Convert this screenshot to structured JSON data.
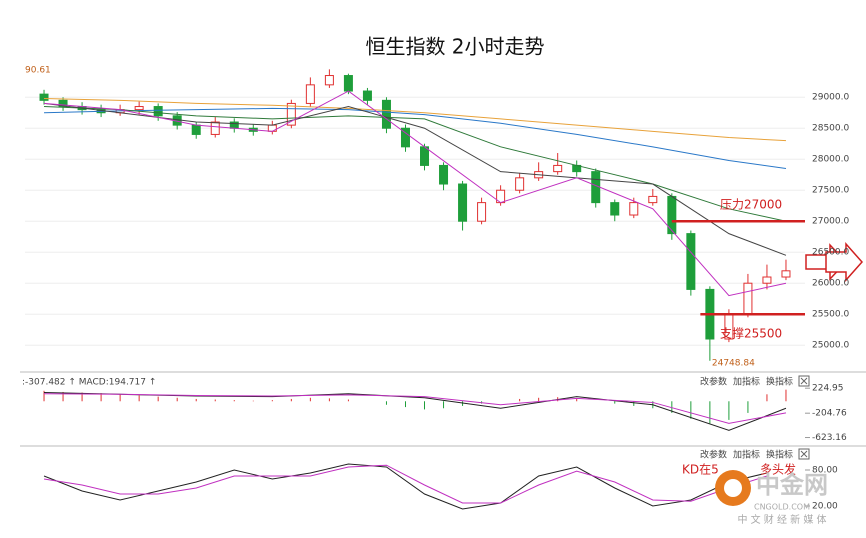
{
  "chart_data": {
    "type": "candlestick",
    "title": "恒生指数 2小时走势",
    "corner_value": "90.61",
    "grid": true,
    "ylim": [
      24600,
      29520
    ],
    "yticks": [
      {
        "value": 29000,
        "label": "29000.0"
      },
      {
        "value": 28500,
        "label": "28500.0"
      },
      {
        "value": 28000,
        "label": "28000.0"
      },
      {
        "value": 27500,
        "label": "27500.0"
      },
      {
        "value": 27000,
        "label": "27000.0"
      },
      {
        "value": 26500,
        "label": "26500.0"
      },
      {
        "value": 26000,
        "label": "26000.0"
      },
      {
        "value": 25500,
        "label": "25500.0"
      },
      {
        "value": 25000,
        "label": "25000.0"
      }
    ],
    "xlim": [
      -1,
      40
    ],
    "up_color": "#e03030",
    "down_color": "#1e9e3a",
    "x": [
      0,
      1,
      2,
      3,
      4,
      5,
      6,
      7,
      8,
      9,
      10,
      11,
      12,
      13,
      14,
      15,
      16,
      17,
      18,
      19,
      20,
      21,
      22,
      23,
      24,
      25,
      26,
      27,
      28,
      29,
      30,
      31,
      32,
      33,
      34,
      35,
      36,
      37,
      38,
      39
    ],
    "open": [
      29050,
      28950,
      28850,
      28800,
      28750,
      28800,
      28850,
      28700,
      28550,
      28400,
      28600,
      28500,
      28450,
      28550,
      28900,
      29200,
      29350,
      29100,
      28950,
      28500,
      28200,
      27900,
      27600,
      27000,
      27300,
      27500,
      27700,
      27800,
      27900,
      27800,
      27300,
      27100,
      27300,
      27400,
      26800,
      25900,
      25100,
      25500,
      26000,
      26100
    ],
    "close": [
      28950,
      28850,
      28800,
      28750,
      28800,
      28850,
      28700,
      28550,
      28400,
      28600,
      28500,
      28450,
      28550,
      28900,
      29200,
      29350,
      29100,
      28950,
      28500,
      28200,
      27900,
      27600,
      27000,
      27300,
      27500,
      27700,
      27800,
      27900,
      27800,
      27300,
      27100,
      27300,
      27400,
      26800,
      25900,
      25100,
      25500,
      26000,
      26100,
      26200
    ],
    "high": [
      29120,
      29000,
      28920,
      28880,
      28880,
      28930,
      28900,
      28760,
      28600,
      28680,
      28660,
      28560,
      28620,
      28960,
      29320,
      29450,
      29380,
      29150,
      29000,
      28560,
      28250,
      27950,
      27650,
      27380,
      27580,
      27780,
      27950,
      28100,
      27980,
      27850,
      27350,
      27380,
      27520,
      27450,
      26850,
      25950,
      25580,
      26150,
      26300,
      26380
    ],
    "low": [
      28880,
      28780,
      28720,
      28680,
      28700,
      28720,
      28620,
      28480,
      28330,
      28350,
      28430,
      28380,
      28400,
      28500,
      28850,
      29150,
      29050,
      28880,
      28420,
      28120,
      27820,
      27500,
      26850,
      26950,
      27250,
      27450,
      27650,
      27750,
      27720,
      27220,
      27000,
      27050,
      27250,
      26700,
      25800,
      24748.84,
      25050,
      25450,
      25900,
      26050
    ],
    "low_label": 24748.84,
    "ma_lines": [
      {
        "color": "#e8a23a",
        "x": [
          0,
          4,
          8,
          12,
          16,
          20,
          24,
          28,
          32,
          36,
          39
        ],
        "values": [
          28980,
          28950,
          28900,
          28870,
          28820,
          28750,
          28650,
          28550,
          28450,
          28350,
          28300
        ]
      },
      {
        "color": "#2a78c8",
        "x": [
          0,
          4,
          8,
          12,
          16,
          20,
          24,
          28,
          32,
          36,
          39
        ],
        "values": [
          28750,
          28780,
          28800,
          28820,
          28800,
          28720,
          28580,
          28400,
          28200,
          27980,
          27850
        ]
      },
      {
        "color": "#2f7a3a",
        "x": [
          0,
          4,
          8,
          12,
          16,
          20,
          24,
          28,
          32,
          36,
          39
        ],
        "values": [
          28850,
          28800,
          28700,
          28650,
          28700,
          28650,
          28200,
          27900,
          27600,
          27200,
          27000
        ]
      },
      {
        "color": "#444444",
        "x": [
          0,
          4,
          8,
          12,
          16,
          20,
          24,
          28,
          32,
          36,
          39
        ],
        "values": [
          28900,
          28750,
          28600,
          28550,
          28850,
          28500,
          27800,
          27700,
          27600,
          26800,
          26450
        ]
      },
      {
        "color": "#c030c0",
        "x": [
          0,
          4,
          8,
          12,
          16,
          20,
          24,
          28,
          32,
          36,
          39
        ],
        "values": [
          28900,
          28800,
          28550,
          28450,
          29100,
          28200,
          27300,
          27700,
          27200,
          25800,
          26000
        ]
      }
    ],
    "levels": [
      {
        "value": 27000,
        "label": "压力27000",
        "color": "#d02020"
      },
      {
        "value": 25500,
        "label": "支撑25500",
        "color": "#d02020"
      }
    ],
    "macd": {
      "header": ":-307.482 ↑ MACD:194.717 ↑",
      "ylim": [
        -700,
        400
      ],
      "yticks": [
        224.95,
        -204.76,
        -623.16
      ],
      "hist": [
        180,
        160,
        150,
        140,
        120,
        100,
        80,
        60,
        40,
        30,
        20,
        10,
        20,
        40,
        60,
        50,
        30,
        0,
        -60,
        -100,
        -140,
        -120,
        -80,
        -40,
        0,
        40,
        60,
        70,
        40,
        0,
        -40,
        -80,
        -120,
        -200,
        -300,
        -380,
        -320,
        -200,
        120,
        200
      ],
      "lines": [
        {
          "color": "#222222",
          "x": [
            0,
            4,
            8,
            12,
            16,
            20,
            24,
            28,
            32,
            36,
            39
          ],
          "values": [
            150,
            120,
            90,
            80,
            130,
            60,
            -120,
            80,
            -60,
            -500,
            -120
          ]
        },
        {
          "color": "#c030c0",
          "x": [
            0,
            4,
            8,
            12,
            16,
            20,
            24,
            28,
            32,
            36,
            39
          ],
          "values": [
            130,
            120,
            100,
            90,
            110,
            80,
            -60,
            50,
            -20,
            -380,
            -200
          ]
        }
      ]
    },
    "kd": {
      "ylim": [
        0,
        100
      ],
      "yticks": [
        {
          "value": 80,
          "label": "80.00"
        },
        {
          "value": 20,
          "label": "20.00"
        }
      ],
      "note_left": "KD在5",
      "note_right": "多头发",
      "lines": [
        {
          "color": "#222222",
          "x": [
            0,
            2,
            4,
            6,
            8,
            10,
            12,
            14,
            16,
            18,
            20,
            22,
            24,
            26,
            28,
            30,
            32,
            34,
            36,
            38
          ],
          "values": [
            70,
            45,
            30,
            45,
            60,
            80,
            65,
            75,
            90,
            85,
            40,
            15,
            25,
            70,
            85,
            50,
            20,
            30,
            60,
            75
          ]
        },
        {
          "color": "#c030c0",
          "x": [
            0,
            2,
            4,
            6,
            8,
            10,
            12,
            14,
            16,
            18,
            20,
            22,
            24,
            26,
            28,
            30,
            32,
            34,
            36,
            38
          ],
          "values": [
            65,
            55,
            40,
            40,
            50,
            70,
            70,
            70,
            85,
            88,
            55,
            25,
            25,
            55,
            78,
            60,
            30,
            28,
            50,
            70
          ]
        }
      ]
    },
    "buttons": [
      "改参数",
      "加指标",
      "换指标"
    ],
    "watermark": {
      "name": "中金网",
      "site": "CNGOLD.COM",
      "slogan": "中 文 财 经 新 媒 体"
    }
  }
}
